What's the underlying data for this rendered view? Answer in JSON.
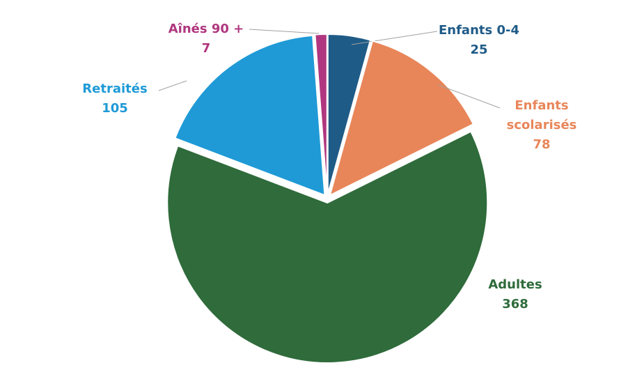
{
  "chart_data": {
    "type": "pie",
    "categories": [
      "Enfants 0-4",
      "Enfants scolarisés",
      "Adultes",
      "Retraités",
      "Aînés 90 +"
    ],
    "values": [
      25,
      78,
      368,
      105,
      7
    ],
    "colors": [
      "#1f5b87",
      "#e8865a",
      "#2f6b3b",
      "#1f9ad6",
      "#b0377f"
    ]
  }
}
